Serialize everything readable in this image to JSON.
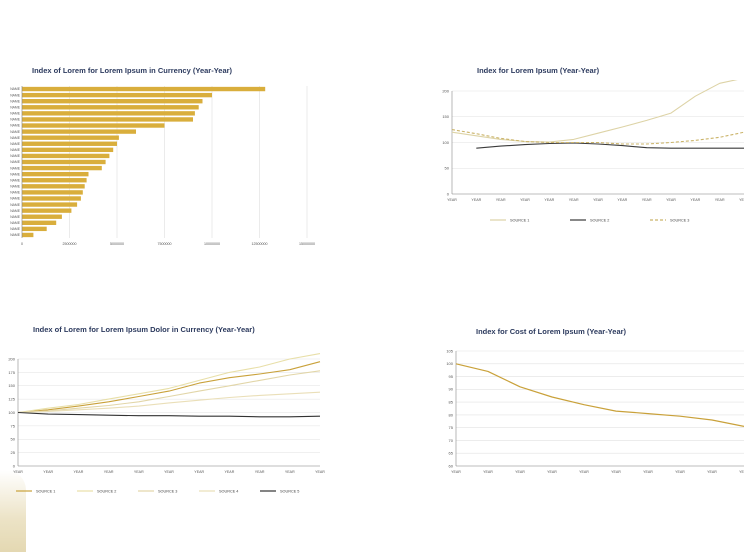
{
  "chart_data": [
    {
      "type": "bar",
      "orientation": "horizontal",
      "title": "Index of Lorem for Lorem Ipsum in Currency (Year-Year)",
      "categories": [
        "NAME",
        "NAME",
        "NAME",
        "NAME",
        "NAME",
        "NAME",
        "NAME",
        "NAME",
        "NAME",
        "NAME",
        "NAME",
        "NAME",
        "NAME",
        "NAME",
        "NAME",
        "NAME",
        "NAME",
        "NAME",
        "NAME",
        "NAME",
        "NAME",
        "NAME",
        "NAME",
        "NAME",
        "NAME"
      ],
      "values": [
        12800,
        10000,
        9500,
        9300,
        9100,
        9000,
        7500,
        6000,
        5100,
        5000,
        4800,
        4600,
        4400,
        4200,
        3500,
        3400,
        3300,
        3200,
        3100,
        2900,
        2600,
        2100,
        1800,
        1300,
        600
      ],
      "xlim": [
        0,
        15000
      ],
      "xticks": [
        "0",
        "2500000",
        "5000000",
        "7500000",
        "10000000",
        "12500000",
        "15000000"
      ],
      "grid": true,
      "color": "#d9ae3c"
    },
    {
      "type": "line",
      "title": "Index for Lorem Ipsum (Year-Year)",
      "x": [
        "YEAR",
        "YEAR",
        "YEAR",
        "YEAR",
        "YEAR",
        "YEAR",
        "YEAR",
        "YEAR",
        "YEAR",
        "YEAR",
        "YEAR",
        "YEAR",
        "YEAR"
      ],
      "ylim": [
        0,
        200
      ],
      "yticks": [
        "0",
        "50",
        "100",
        "150",
        "200"
      ],
      "grid": true,
      "legend_position": "bottom",
      "series": [
        {
          "name": "SOURCE 1",
          "color": "#ddd3a6",
          "dash": false,
          "values": [
            120,
            113,
            106,
            102,
            101,
            106,
            118,
            130,
            143,
            157,
            190,
            215,
            225
          ]
        },
        {
          "name": "SOURCE 2",
          "color": "#3a3a3a",
          "dash": false,
          "values": [
            null,
            89,
            93,
            96,
            98,
            99,
            97,
            94,
            90,
            89,
            89,
            89,
            89
          ]
        },
        {
          "name": "SOURCE 3",
          "color": "#cbb46a",
          "dash": true,
          "values": [
            125,
            117,
            108,
            102,
            100,
            100,
            100,
            97,
            97,
            100,
            104,
            110,
            120
          ]
        }
      ]
    },
    {
      "type": "line",
      "title": "Index of Lorem for Lorem Ipsum Dolor in Currency (Year-Year)",
      "x": [
        "YEAR",
        "YEAR",
        "YEAR",
        "YEAR",
        "YEAR",
        "YEAR",
        "YEAR",
        "YEAR",
        "YEAR",
        "YEAR",
        "YEAR"
      ],
      "ylim": [
        0,
        200
      ],
      "yticks": [
        "0",
        "25",
        "50",
        "75",
        "100",
        "125",
        "150",
        "175",
        "200"
      ],
      "grid": true,
      "legend_position": "bottom",
      "series": [
        {
          "name": "SOURCE 1",
          "color": "#c9a13a",
          "dash": false,
          "values": [
            100,
            105,
            112,
            120,
            130,
            140,
            155,
            165,
            172,
            180,
            195
          ]
        },
        {
          "name": "SOURCE 2",
          "color": "#e8dfa8",
          "dash": false,
          "values": [
            100,
            108,
            115,
            125,
            135,
            145,
            160,
            175,
            185,
            200,
            210
          ]
        },
        {
          "name": "SOURCE 3",
          "color": "#e2d6a8",
          "dash": false,
          "values": [
            100,
            103,
            108,
            113,
            120,
            130,
            140,
            150,
            160,
            170,
            178
          ]
        },
        {
          "name": "SOURCE 4",
          "color": "#eadfb8",
          "dash": false,
          "values": [
            100,
            102,
            105,
            108,
            112,
            118,
            123,
            128,
            132,
            135,
            138
          ]
        },
        {
          "name": "SOURCE 5",
          "color": "#333333",
          "dash": false,
          "values": [
            100,
            97,
            96,
            95,
            94,
            94,
            93,
            93,
            92,
            92,
            93
          ]
        }
      ]
    },
    {
      "type": "line",
      "title": "Index for Cost of Lorem Ipsum (Year-Year)",
      "x": [
        "YEAR",
        "YEAR",
        "YEAR",
        "YEAR",
        "YEAR",
        "YEAR",
        "YEAR",
        "YEAR",
        "YEAR",
        "YEAR"
      ],
      "ylim": [
        60,
        105
      ],
      "yticks": [
        "60",
        "65",
        "70",
        "75",
        "80",
        "85",
        "90",
        "95",
        "100",
        "105"
      ],
      "grid": true,
      "series": [
        {
          "name": "",
          "color": "#c9a13a",
          "dash": false,
          "values": [
            100,
            97,
            91,
            87,
            84,
            81.5,
            80.5,
            79.5,
            78,
            75.5
          ]
        }
      ]
    }
  ]
}
